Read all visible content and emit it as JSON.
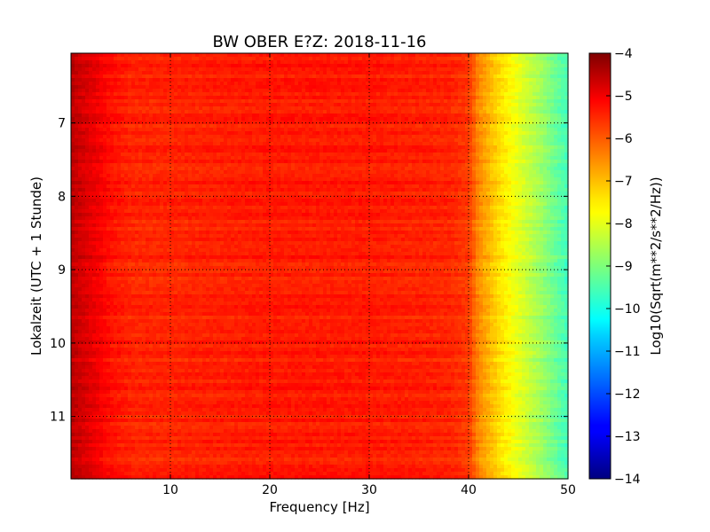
{
  "chart_data": {
    "type": "heatmap",
    "title": "BW OBER E?Z: 2018-11-16",
    "xlabel": "Frequency [Hz]",
    "ylabel": "Lokalzeit (UTC + 1 Stunde)",
    "xlim": [
      0,
      50
    ],
    "ylim": [
      11.85,
      6.05
    ],
    "y_axis_direction": "top-to-bottom increasing",
    "x_ticks": [
      10,
      20,
      30,
      40,
      50
    ],
    "x_tick_labels": [
      "10",
      "20",
      "30",
      "40",
      "50"
    ],
    "y_ticks": [
      7,
      8,
      9,
      10,
      11
    ],
    "y_tick_labels": [
      "7",
      "8",
      "9",
      "10",
      "11"
    ],
    "grid": true,
    "grid_style": "dotted",
    "colormap": "jet",
    "colorbar": {
      "label": "Log10(Sqrt(m**2/s**2/Hz))",
      "vmin": -14,
      "vmax": -4,
      "ticks": [
        -4,
        -5,
        -6,
        -7,
        -8,
        -9,
        -10,
        -11,
        -12,
        -13,
        -14
      ],
      "tick_labels": [
        "−4",
        "−5",
        "−6",
        "−7",
        "−8",
        "−9",
        "−10",
        "−11",
        "−12",
        "−13",
        "−14"
      ]
    },
    "approx_value_profile": {
      "frequency_hz": [
        0,
        1,
        2,
        4,
        6,
        10,
        20,
        30,
        38,
        40,
        41,
        43,
        45,
        47,
        49,
        50
      ],
      "log10_amplitude": [
        -4.6,
        -4.8,
        -5.0,
        -5.4,
        -5.6,
        -5.6,
        -5.5,
        -5.5,
        -5.6,
        -5.8,
        -6.6,
        -7.4,
        -8.0,
        -8.6,
        -9.3,
        -9.6
      ]
    }
  }
}
